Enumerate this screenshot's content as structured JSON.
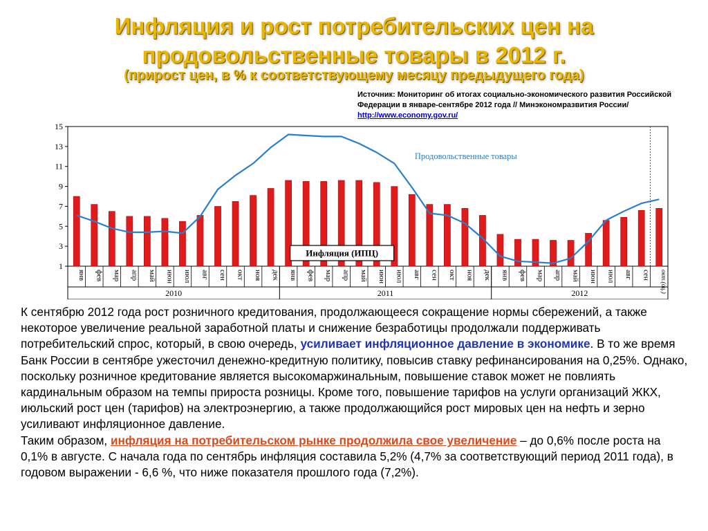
{
  "header": {
    "title_line1": "Инфляция и рост потребительских цен на",
    "title_line2": "продовольственные товары в 2012 г.",
    "subtitle": "(прирост цен, в % к соответствующему  месяцу предыдущего года)"
  },
  "source": {
    "line1": "Источник: Мониторинг об итогах социально-экономического развития Российской",
    "line2": "Федерации в январе-сентябре 2012 года // Минэкономразвития России/",
    "link": "http://www.economy.gov.ru/"
  },
  "colors": {
    "title": "#e8b800",
    "bars": "#e01b1b",
    "line": "#2a7fc8",
    "highlight_blue": "#1f35b3",
    "highlight_red": "#d94a1c"
  },
  "chart_data": {
    "type": "bar",
    "categories": [
      "янв",
      "фев",
      "мар",
      "апр",
      "май",
      "июн",
      "июл",
      "авг",
      "сен",
      "окт",
      "ноя",
      "дек",
      "янв",
      "фев",
      "мар",
      "апр",
      "май",
      "июн",
      "июл",
      "авг",
      "сен",
      "окт",
      "ноя",
      "дек",
      "янв",
      "фев",
      "мар",
      "апр",
      "май",
      "июн",
      "июл",
      "авг",
      "сен",
      "окт.(оц.)"
    ],
    "years": [
      {
        "label": "2010",
        "start": 0,
        "end": 11
      },
      {
        "label": "2011",
        "start": 12,
        "end": 23
      },
      {
        "label": "2012",
        "start": 24,
        "end": 33
      }
    ],
    "series": [
      {
        "name": "Инфляция (ИПЦ)",
        "kind": "bar",
        "values": [
          8.0,
          7.2,
          6.5,
          6.0,
          6.0,
          5.8,
          5.5,
          6.1,
          7.0,
          7.5,
          8.1,
          8.8,
          9.6,
          9.5,
          9.5,
          9.6,
          9.6,
          9.4,
          9.0,
          8.2,
          7.2,
          7.2,
          6.8,
          6.1,
          4.2,
          3.7,
          3.7,
          3.6,
          3.6,
          4.3,
          5.6,
          5.9,
          6.6,
          6.8
        ]
      },
      {
        "name": "Продовольственные товары",
        "kind": "line",
        "values": [
          6.1,
          5.5,
          4.8,
          4.4,
          4.4,
          4.5,
          4.3,
          6.0,
          8.7,
          10.1,
          11.3,
          12.9,
          14.2,
          14.1,
          14.0,
          14.0,
          13.3,
          12.4,
          11.3,
          8.9,
          6.3,
          6.1,
          5.3,
          3.8,
          2.0,
          1.5,
          1.4,
          1.3,
          1.8,
          3.5,
          5.6,
          6.5,
          7.3,
          7.7
        ]
      }
    ],
    "yticks": [
      1,
      3,
      5,
      7,
      9,
      11,
      13,
      15
    ],
    "ylim": [
      1,
      15
    ],
    "grid": false,
    "title": "",
    "xlabel": "",
    "ylabel": ""
  },
  "body": {
    "p1_a": "К сентябрю 2012 года рост розничного кредитования, продолжающееся сокращение нормы сбережений, а также некоторое увеличение реальной заработной платы и снижение безработицы продолжали поддерживать потребительский спрос, который, в свою очередь, ",
    "p1_hl": "усиливает инфляционное давление в экономике",
    "p1_b": ". В то же время Банк России в сентябре ужесточил денежно-кредитную политику, повысив ставку рефинансирования на 0,25%. Однако, поскольку розничное кредитование является высокомаржинальным, повышение ставок может не повлиять кардинальным образом на темпы прироста розницы. Кроме того, повышение тарифов на услуги организаций ЖКХ, июльский рост цен (тарифов) на электроэнергию, а также продолжающийся рост мировых цен на нефть и зерно усиливают инфляционное давление.",
    "p2_a": "Таким образом, ",
    "p2_hl": "инфляция на потребительском рынке продолжила свое увеличение",
    "p2_b": " – до 0,6% после роста на 0,1% в августе. С начала года по сентябрь инфляция составила 5,2% (4,7% за соответствующий период 2011 года), в годовом выражении - 6,6 %, что ниже показателя прошлого года (7,2%)."
  }
}
